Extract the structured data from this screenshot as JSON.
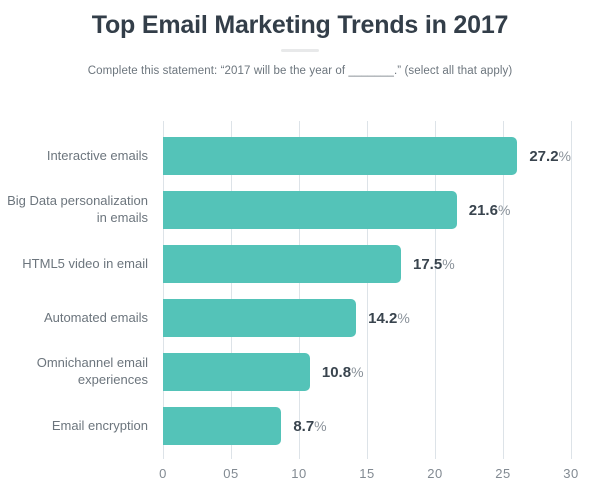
{
  "header": {
    "title": "Top Email Marketing Trends in 2017",
    "subtitle": "Complete this statement: “2017 will be the year of _______.” (select all that apply)"
  },
  "chart": {
    "bar_color": "#54c3b8",
    "gridline_color": "#dde3e8",
    "axis": {
      "max": 30,
      "ticks": [
        "0",
        "05",
        "10",
        "15",
        "20",
        "25",
        "30"
      ]
    },
    "bars": [
      {
        "label": "Interactive emails",
        "value": 27.2,
        "display": "27.2",
        "suffix": "%"
      },
      {
        "label": "Big Data personalization\nin emails",
        "value": 21.6,
        "display": "21.6",
        "suffix": "%"
      },
      {
        "label": "HTML5 video in email",
        "value": 17.5,
        "display": "17.5",
        "suffix": "%"
      },
      {
        "label": "Automated emails",
        "value": 14.2,
        "display": "14.2",
        "suffix": "%"
      },
      {
        "label": "Omnichannel email\nexperiences",
        "value": 10.8,
        "display": "10.8",
        "suffix": "%"
      },
      {
        "label": "Email encryption",
        "value": 8.7,
        "display": "8.7",
        "suffix": "%"
      }
    ]
  },
  "chart_data": {
    "type": "bar",
    "orientation": "horizontal",
    "title": "Top Email Marketing Trends in 2017",
    "subtitle": "Complete this statement: “2017 will be the year of _______.” (select all that apply)",
    "categories": [
      "Interactive emails",
      "Big Data personalization in emails",
      "HTML5 video in email",
      "Automated emails",
      "Omnichannel email experiences",
      "Email encryption"
    ],
    "values": [
      27.2,
      21.6,
      17.5,
      14.2,
      10.8,
      8.7
    ],
    "value_labels": [
      "27.2%",
      "21.6%",
      "17.5%",
      "14.2%",
      "10.8%",
      "8.7%"
    ],
    "xlabel": "",
    "ylabel": "",
    "xlim": [
      0,
      30
    ],
    "xticks": [
      "0",
      "05",
      "10",
      "15",
      "20",
      "25",
      "30"
    ],
    "grid": "vertical",
    "legend": "none",
    "bar_color": "#54c3b8"
  }
}
